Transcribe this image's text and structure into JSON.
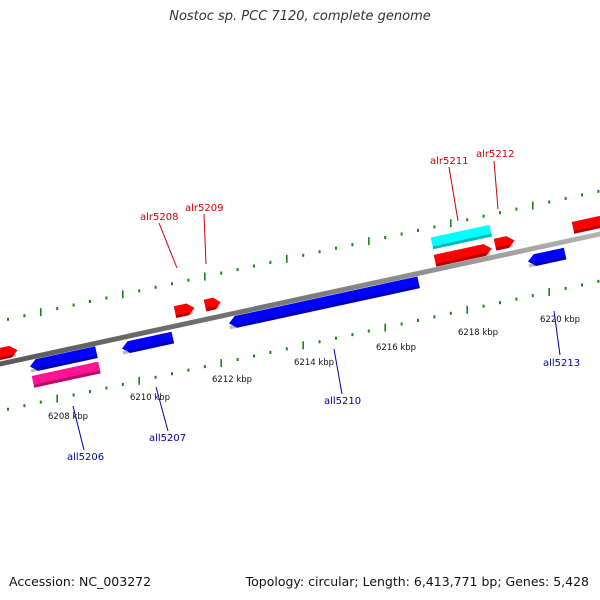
{
  "title": "Nostoc sp. PCC 7120, complete genome",
  "footer": {
    "accession": "Accession: NC_003272",
    "summary": "Topology: circular; Length: 6,413,771 bp; Genes: 5,428"
  },
  "colors": {
    "forward": "#ff0000",
    "reverse": "#0000ff",
    "forward_label": "#cc0000",
    "reverse_label": "#0000aa",
    "cyan_feature": "#00ffff",
    "magenta_feature": "#ff1493",
    "axis": "#888888",
    "tick": "#118811"
  },
  "ruler_labels": [
    "6208 kbp",
    "6210 kbp",
    "6212 kbp",
    "6214 kbp",
    "6216 kbp",
    "6218 kbp",
    "6220 kbp"
  ],
  "genes": [
    {
      "name": "alr5208",
      "strand": "forward"
    },
    {
      "name": "alr5209",
      "strand": "forward"
    },
    {
      "name": "alr5211",
      "strand": "forward"
    },
    {
      "name": "alr5212",
      "strand": "forward"
    },
    {
      "name": "all5206",
      "strand": "reverse"
    },
    {
      "name": "all5207",
      "strand": "reverse"
    },
    {
      "name": "all5210",
      "strand": "reverse"
    },
    {
      "name": "all5213",
      "strand": "reverse"
    }
  ]
}
